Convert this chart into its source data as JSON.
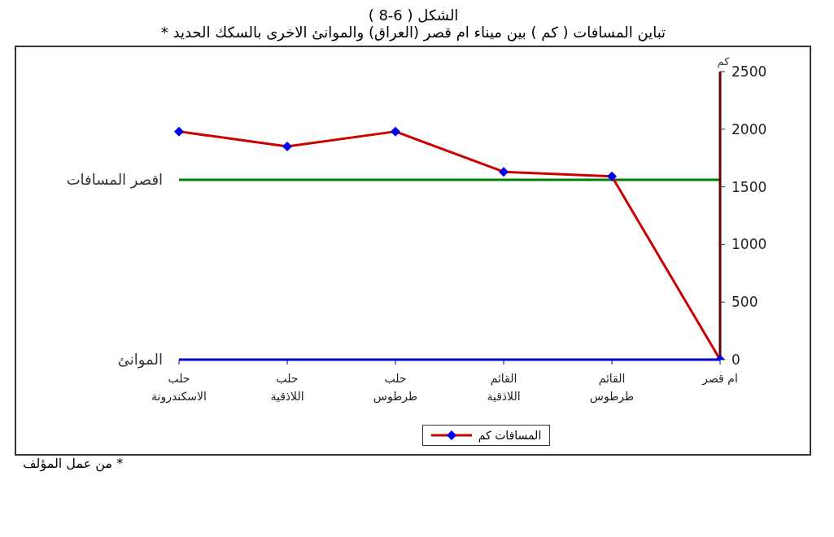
{
  "chart_data": {
    "type": "line",
    "title": "الشكل ( 6-8 )",
    "subtitle": "تباين المسافات ( كم ) بين ميناء ام قصر (العراق) والموانئ الاخرى بالسكك الحديد *",
    "xlabel": "الموانئ",
    "ylabel": "كم",
    "categories": [
      "حلب\nالاسكندرونة",
      "حلب\nاللاذقية",
      "حلب\nطرطوس",
      "القائم\nاللاذقية",
      "القائم\nطرطوس",
      "ام قصر"
    ],
    "series": [
      {
        "name": "المسافات كم",
        "color": "#cc0000",
        "values": [
          1980,
          1850,
          1980,
          1630,
          1590,
          0
        ]
      }
    ],
    "ylim": [
      0,
      2500
    ],
    "yticks": [
      0,
      500,
      1000,
      1500,
      2000,
      2500
    ],
    "grid": false,
    "legend": "bottom",
    "marker": "diamond",
    "line_style": "solid",
    "ref_lines": [
      {
        "axis": "y",
        "value": 1560,
        "label": "اقصر المسافات",
        "color": "#008000"
      }
    ],
    "annotations": [
      "* من عمل المؤلف"
    ]
  }
}
